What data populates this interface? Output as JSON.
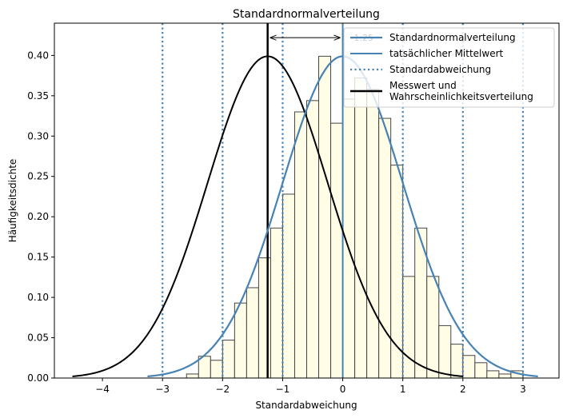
{
  "chart_data": {
    "type": "bar",
    "title": "Standardnormalverteilung",
    "xlabel": "Standardabweichung",
    "ylabel": "Häufigkeitsdichte",
    "xlim": [
      -4.8,
      3.6
    ],
    "ylim": [
      0,
      0.44
    ],
    "xticks": [
      -4,
      -3,
      -2,
      -1,
      0,
      1,
      2,
      3
    ],
    "yticks": [
      0.0,
      0.05,
      0.1,
      0.15,
      0.2,
      0.25,
      0.3,
      0.35,
      0.4
    ],
    "grid": false,
    "legend_position": "top-right",
    "histogram": {
      "bin_width": 0.2,
      "fill_color": "#fffde6",
      "edge_color": "#444444",
      "bins": [
        {
          "x0": -2.6,
          "h": 0.005
        },
        {
          "x0": -2.4,
          "h": 0.027
        },
        {
          "x0": -2.2,
          "h": 0.022
        },
        {
          "x0": -2.0,
          "h": 0.047
        },
        {
          "x0": -1.8,
          "h": 0.093
        },
        {
          "x0": -1.6,
          "h": 0.112
        },
        {
          "x0": -1.4,
          "h": 0.149
        },
        {
          "x0": -1.2,
          "h": 0.186
        },
        {
          "x0": -1.0,
          "h": 0.228
        },
        {
          "x0": -0.8,
          "h": 0.33
        },
        {
          "x0": -0.6,
          "h": 0.344
        },
        {
          "x0": -0.4,
          "h": 0.399
        },
        {
          "x0": -0.2,
          "h": 0.316
        },
        {
          "x0": 0.0,
          "h": 0.346
        },
        {
          "x0": 0.2,
          "h": 0.372
        },
        {
          "x0": 0.4,
          "h": 0.358
        },
        {
          "x0": 0.6,
          "h": 0.322
        },
        {
          "x0": 0.8,
          "h": 0.264
        },
        {
          "x0": 1.0,
          "h": 0.126
        },
        {
          "x0": 1.2,
          "h": 0.186
        },
        {
          "x0": 1.4,
          "h": 0.126
        },
        {
          "x0": 1.6,
          "h": 0.065
        },
        {
          "x0": 1.8,
          "h": 0.042
        },
        {
          "x0": 2.0,
          "h": 0.028
        },
        {
          "x0": 2.2,
          "h": 0.019
        },
        {
          "x0": 2.4,
          "h": 0.009
        },
        {
          "x0": 2.6,
          "h": 0.005
        },
        {
          "x0": 2.8,
          "h": 0.009
        }
      ]
    },
    "series": [
      {
        "name": "Standardnormalverteilung",
        "kind": "curve",
        "mean": 0,
        "sd": 1,
        "x_range": [
          -3.25,
          3.25
        ],
        "color": "#4682b4"
      },
      {
        "name": "tatsächlicher Mittelwert",
        "kind": "vline",
        "x": 0,
        "color": "#4682b4"
      },
      {
        "name": "Standardabweichung",
        "kind": "vlines-dotted",
        "x": [
          -3,
          -2,
          -1,
          1,
          2,
          3
        ],
        "color": "#4682b4"
      },
      {
        "name": "Messwert und\nWahrscheinlichkeitsverteilung",
        "kind": "vline+curve",
        "x": -1.25,
        "mean": -1.25,
        "sd": 1,
        "x_range": [
          -4.5,
          2.0
        ],
        "color": "#000000"
      }
    ],
    "annotations": [
      {
        "text": "-1.25",
        "from_x": -1.25,
        "to_x": 0,
        "y": 0.422
      }
    ]
  }
}
